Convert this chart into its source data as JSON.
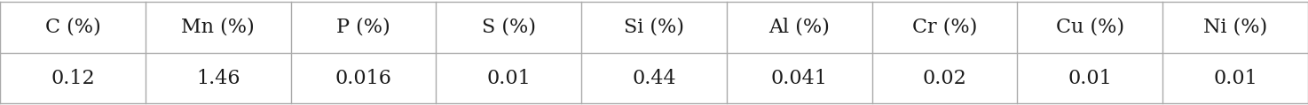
{
  "headers": [
    "C (%)",
    "Mn (%)",
    "P (%)",
    "S (%)",
    "Si (%)",
    "Al (%)",
    "Cr (%)",
    "Cu (%)",
    "Ni (%)"
  ],
  "values": [
    "0.12",
    "1.46",
    "0.016",
    "0.01",
    "0.44",
    "0.041",
    "0.02",
    "0.01",
    "0.01"
  ],
  "background_color": "#ffffff",
  "line_color": "#aaaaaa",
  "text_color": "#1a1a1a",
  "header_fontsize": 16,
  "value_fontsize": 16,
  "fig_width": 14.74,
  "fig_height": 1.19,
  "dpi": 100
}
